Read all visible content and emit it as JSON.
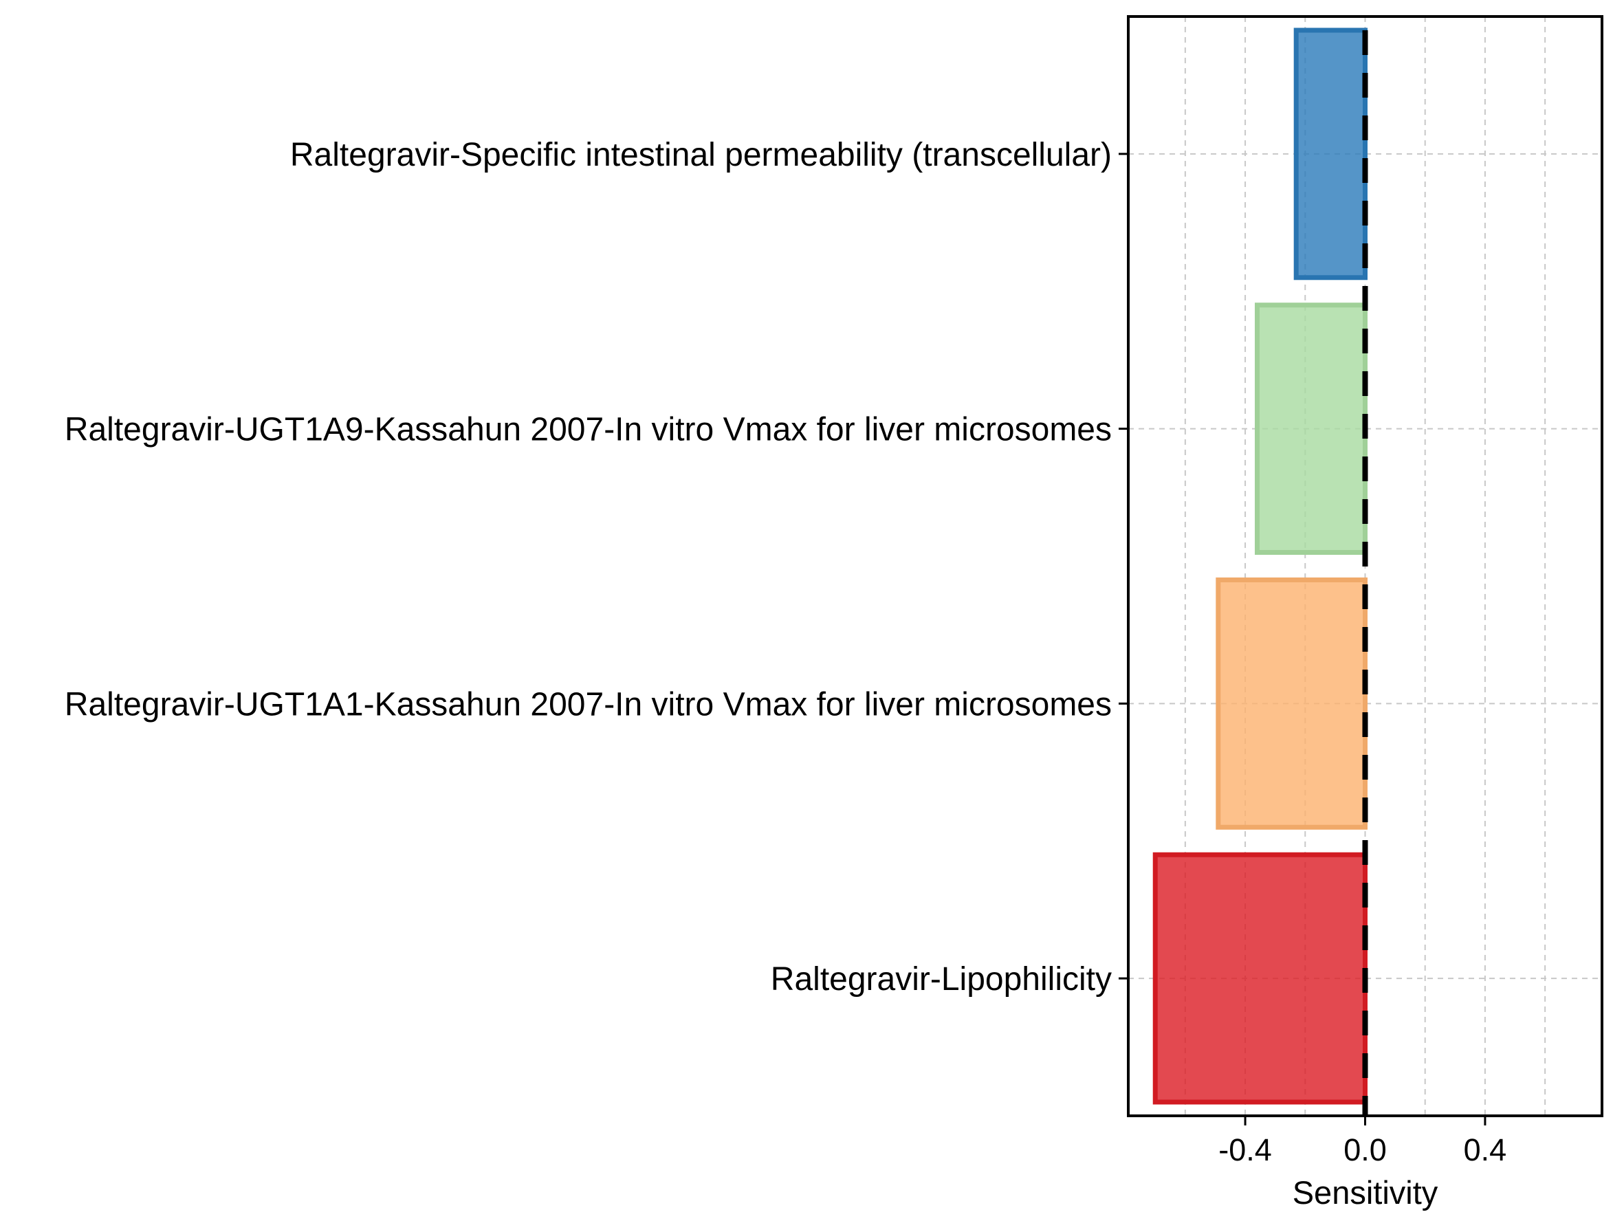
{
  "chart_data": {
    "type": "bar",
    "orientation": "horizontal",
    "categories": [
      "Raltegravir-Specific intestinal permeability (transcellular)",
      "Raltegravir-UGT1A9-Kassahun 2007-In vitro Vmax for liver microsomes",
      "Raltegravir-UGT1A1-Kassahun 2007-In vitro Vmax for liver microsomes",
      "Raltegravir-Lipophilicity"
    ],
    "values": [
      -0.23,
      -0.36,
      -0.49,
      -0.7
    ],
    "colors": [
      "#2b7bba",
      "#a8dba0",
      "#fdb26e",
      "#dc1c24"
    ],
    "xlabel": "Sensitivity",
    "ylabel": "",
    "title": "",
    "xlim": [
      -0.79,
      0.79
    ],
    "xticks": [
      -0.4,
      0.0,
      0.4
    ],
    "xtick_labels": [
      "-0.4",
      "0.0",
      "0.4"
    ],
    "reference_line": {
      "x": 0,
      "style": "dashed",
      "color": "#000000"
    },
    "grid": true,
    "legend": "none"
  }
}
